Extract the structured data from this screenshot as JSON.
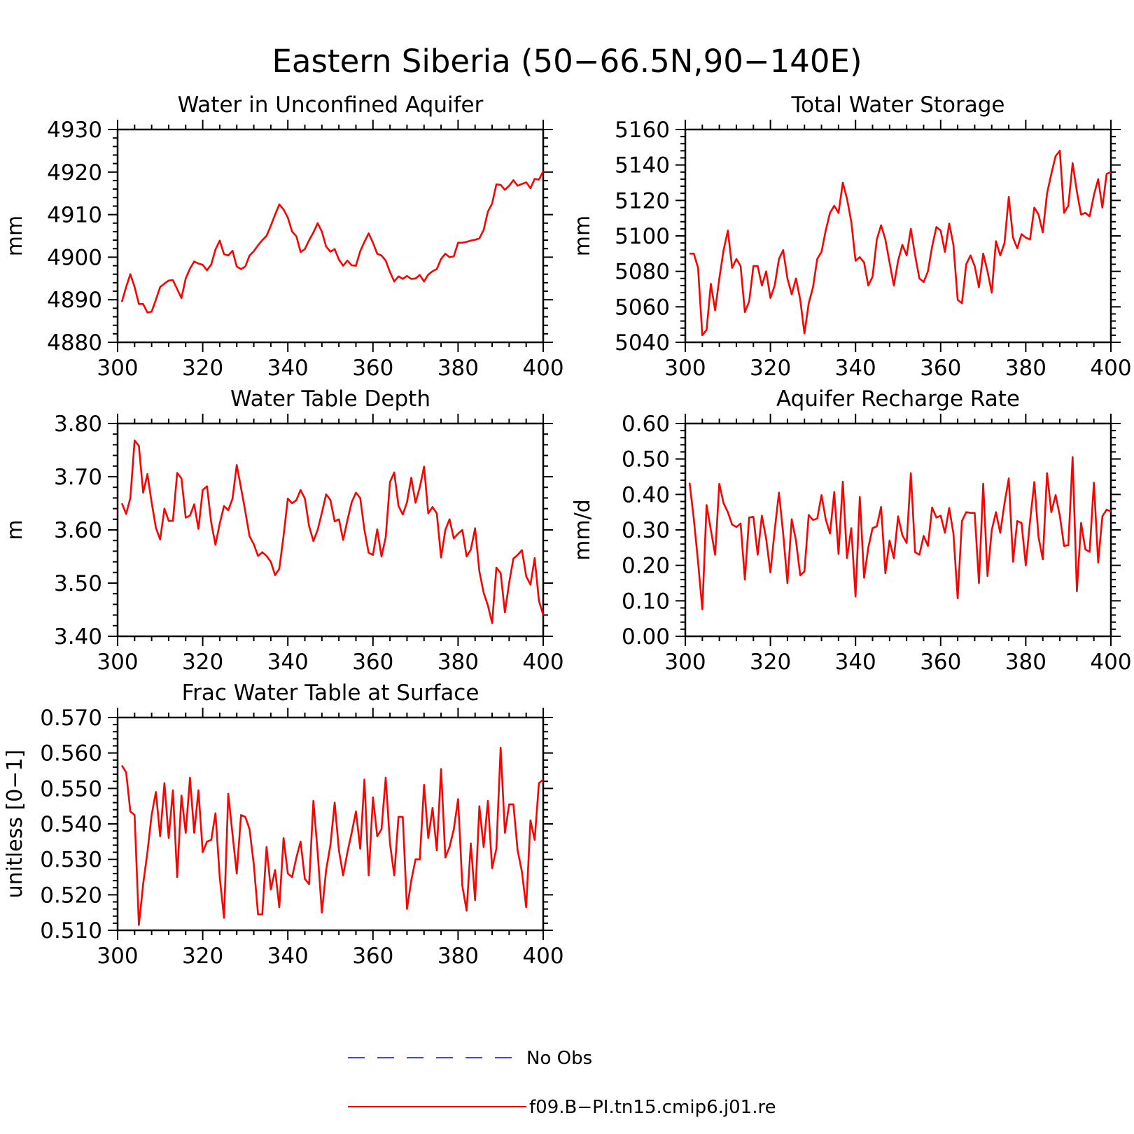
{
  "title": "Eastern Siberia (50−66.5N,90−140E)",
  "colors": {
    "model": "#ff0000",
    "obs": "#0000ff",
    "axes": "#000000"
  },
  "legend": {
    "obs_label": "No Obs",
    "model_label": "f09.B−PI.tn15.cmip6.j01.re"
  },
  "chart_data": [
    {
      "type": "line",
      "title": "Water in Unconfined Aquifer",
      "ylabel": "mm",
      "xlim": [
        300,
        400
      ],
      "ylim": [
        4880,
        4930
      ],
      "xticks": [
        "300",
        "320",
        "340",
        "360",
        "380",
        "400"
      ],
      "yticks": [
        "4880",
        "4890",
        "4900",
        "4910",
        "4920",
        "4930"
      ],
      "x": [
        301,
        302,
        303,
        304,
        305,
        306,
        307,
        308,
        309,
        310,
        311,
        312,
        313,
        314,
        315,
        316,
        317,
        318,
        319,
        320,
        321,
        322,
        323,
        324,
        325,
        326,
        327,
        328,
        329,
        330,
        331,
        332,
        333,
        334,
        335,
        336,
        337,
        338,
        339,
        340,
        341,
        342,
        343,
        344,
        345,
        346,
        347,
        348,
        349,
        350,
        351,
        352,
        353,
        354,
        355,
        356,
        357,
        358,
        359,
        360,
        361,
        362,
        363,
        364,
        365,
        366,
        367,
        368,
        369,
        370,
        371,
        372,
        373,
        374,
        375,
        376,
        377,
        378,
        379,
        380,
        381,
        382,
        383,
        384,
        385,
        386,
        387,
        388,
        389,
        390,
        391,
        392,
        393,
        394,
        395,
        396,
        397,
        398,
        399,
        400
      ],
      "series": [
        {
          "values": [
            4889.5,
            4893.0,
            4896.0,
            4893.0,
            4889.0,
            4889.0,
            4887.0,
            4887.2,
            4890.0,
            4893.0,
            4893.8,
            4894.5,
            4894.6,
            4892.5,
            4890.4,
            4895.0,
            4897.3,
            4899.0,
            4898.5,
            4898.2,
            4896.9,
            4898.3,
            4901.8,
            4903.9,
            4900.7,
            4900.4,
            4901.5,
            4897.8,
            4897.2,
            4897.8,
            4900.4,
            4901.4,
            4902.8,
            4904.0,
            4905.0,
            4907.4,
            4910.0,
            4912.4,
            4911.2,
            4909.3,
            4906.0,
            4904.9,
            4901.2,
            4901.9,
            4904.0,
            4905.8,
            4908.0,
            4906.0,
            4902.5,
            4901.3,
            4901.9,
            4899.4,
            4898.0,
            4899.2,
            4898.1,
            4898.0,
            4901.4,
            4903.6,
            4905.6,
            4903.4,
            4900.8,
            4900.4,
            4899.2,
            4896.5,
            4894.3,
            4895.5,
            4894.9,
            4895.6,
            4894.9,
            4895.0,
            4895.8,
            4894.3,
            4895.9,
            4896.7,
            4897.2,
            4899.6,
            4900.8,
            4900.0,
            4900.2,
            4903.4,
            4903.4,
            4903.6,
            4903.9,
            4904.1,
            4904.4,
            4906.4,
            4910.7,
            4912.6,
            4917.1,
            4917.0,
            4915.8,
            4916.8,
            4918.1,
            4916.8,
            4917.2,
            4917.6,
            4916.2,
            4918.4,
            4918.2,
            4920.2
          ]
        }
      ]
    },
    {
      "type": "line",
      "title": "Total Water Storage",
      "ylabel": "mm",
      "xlim": [
        300,
        400
      ],
      "ylim": [
        5040,
        5160
      ],
      "xticks": [
        "300",
        "320",
        "340",
        "360",
        "380",
        "400"
      ],
      "yticks": [
        "5040",
        "5060",
        "5080",
        "5100",
        "5120",
        "5140",
        "5160"
      ],
      "x": [
        301,
        302,
        303,
        304,
        305,
        306,
        307,
        308,
        309,
        310,
        311,
        312,
        313,
        314,
        315,
        316,
        317,
        318,
        319,
        320,
        321,
        322,
        323,
        324,
        325,
        326,
        327,
        328,
        329,
        330,
        331,
        332,
        333,
        334,
        335,
        336,
        337,
        338,
        339,
        340,
        341,
        342,
        343,
        344,
        345,
        346,
        347,
        348,
        349,
        350,
        351,
        352,
        353,
        354,
        355,
        356,
        357,
        358,
        359,
        360,
        361,
        362,
        363,
        364,
        365,
        366,
        367,
        368,
        369,
        370,
        371,
        372,
        373,
        374,
        375,
        376,
        377,
        378,
        379,
        380,
        381,
        382,
        383,
        384,
        385,
        386,
        387,
        388,
        389,
        390,
        391,
        392,
        393,
        394,
        395,
        396,
        397,
        398,
        399,
        400
      ],
      "series": [
        {
          "values": [
            5090,
            5090,
            5082,
            5044,
            5047,
            5073,
            5058,
            5076,
            5092,
            5103,
            5082,
            5087,
            5083,
            5057,
            5063,
            5083,
            5083,
            5072,
            5080,
            5065,
            5072,
            5087,
            5092,
            5076,
            5067,
            5076,
            5064,
            5045,
            5062,
            5071,
            5087,
            5091,
            5103,
            5113,
            5117,
            5113,
            5130,
            5121,
            5108,
            5086,
            5088,
            5085,
            5072,
            5077,
            5098,
            5106,
            5098,
            5085,
            5072,
            5086,
            5095,
            5089,
            5104,
            5089,
            5076,
            5074,
            5080,
            5094,
            5105,
            5103,
            5091,
            5107,
            5095,
            5064,
            5062,
            5084,
            5089,
            5083,
            5071,
            5090,
            5080,
            5068,
            5097,
            5089,
            5096,
            5122,
            5099,
            5093,
            5101,
            5099,
            5098,
            5116,
            5112,
            5102,
            5124,
            5135,
            5145,
            5148,
            5113,
            5117,
            5141,
            5125,
            5112,
            5113,
            5111,
            5123,
            5132,
            5116,
            5135,
            5136
          ]
        }
      ]
    },
    {
      "type": "line",
      "title": "Water Table Depth",
      "ylabel": "m",
      "xlim": [
        300,
        400
      ],
      "ylim": [
        3.4,
        3.8
      ],
      "xticks": [
        "300",
        "320",
        "340",
        "360",
        "380",
        "400"
      ],
      "yticks": [
        "3.40",
        "3.50",
        "3.60",
        "3.70",
        "3.80"
      ],
      "x": [
        301,
        302,
        303,
        304,
        305,
        306,
        307,
        308,
        309,
        310,
        311,
        312,
        313,
        314,
        315,
        316,
        317,
        318,
        319,
        320,
        321,
        322,
        323,
        324,
        325,
        326,
        327,
        328,
        329,
        330,
        331,
        332,
        333,
        334,
        335,
        336,
        337,
        338,
        339,
        340,
        341,
        342,
        343,
        344,
        345,
        346,
        347,
        348,
        349,
        350,
        351,
        352,
        353,
        354,
        355,
        356,
        357,
        358,
        359,
        360,
        361,
        362,
        363,
        364,
        365,
        366,
        367,
        368,
        369,
        370,
        371,
        372,
        373,
        374,
        375,
        376,
        377,
        378,
        379,
        380,
        381,
        382,
        383,
        384,
        385,
        386,
        387,
        388,
        389,
        390,
        391,
        392,
        393,
        394,
        395,
        396,
        397,
        398,
        399,
        400
      ],
      "series": [
        {
          "values": [
            3.65,
            3.63,
            3.66,
            3.768,
            3.758,
            3.67,
            3.705,
            3.652,
            3.604,
            3.582,
            3.64,
            3.617,
            3.617,
            3.707,
            3.697,
            3.623,
            3.627,
            3.648,
            3.602,
            3.675,
            3.682,
            3.613,
            3.572,
            3.612,
            3.645,
            3.637,
            3.659,
            3.722,
            3.679,
            3.635,
            3.588,
            3.573,
            3.551,
            3.558,
            3.551,
            3.54,
            3.515,
            3.527,
            3.589,
            3.659,
            3.65,
            3.656,
            3.675,
            3.659,
            3.607,
            3.579,
            3.6,
            3.632,
            3.667,
            3.656,
            3.616,
            3.62,
            3.581,
            3.618,
            3.652,
            3.67,
            3.66,
            3.6,
            3.557,
            3.553,
            3.601,
            3.55,
            3.586,
            3.69,
            3.708,
            3.645,
            3.629,
            3.652,
            3.698,
            3.651,
            3.68,
            3.719,
            3.631,
            3.643,
            3.631,
            3.548,
            3.6,
            3.62,
            3.584,
            3.593,
            3.6,
            3.55,
            3.563,
            3.603,
            3.522,
            3.482,
            3.458,
            3.425,
            3.529,
            3.519,
            3.445,
            3.501,
            3.546,
            3.553,
            3.562,
            3.513,
            3.497,
            3.547,
            3.467,
            3.44
          ]
        }
      ]
    },
    {
      "type": "line",
      "title": "Aquifer Recharge Rate",
      "ylabel": "mm/d",
      "xlim": [
        300,
        400
      ],
      "ylim": [
        0.0,
        0.6
      ],
      "xticks": [
        "300",
        "320",
        "340",
        "360",
        "380",
        "400"
      ],
      "yticks": [
        "0.00",
        "0.10",
        "0.20",
        "0.30",
        "0.40",
        "0.50",
        "0.60"
      ],
      "x": [
        301,
        302,
        303,
        304,
        305,
        306,
        307,
        308,
        309,
        310,
        311,
        312,
        313,
        314,
        315,
        316,
        317,
        318,
        319,
        320,
        321,
        322,
        323,
        324,
        325,
        326,
        327,
        328,
        329,
        330,
        331,
        332,
        333,
        334,
        335,
        336,
        337,
        338,
        339,
        340,
        341,
        342,
        343,
        344,
        345,
        346,
        347,
        348,
        349,
        350,
        351,
        352,
        353,
        354,
        355,
        356,
        357,
        358,
        359,
        360,
        361,
        362,
        363,
        364,
        365,
        366,
        367,
        368,
        369,
        370,
        371,
        372,
        373,
        374,
        375,
        376,
        377,
        378,
        379,
        380,
        381,
        382,
        383,
        384,
        385,
        386,
        387,
        388,
        389,
        390,
        391,
        392,
        393,
        394,
        395,
        396,
        397,
        398,
        399,
        400
      ],
      "series": [
        {
          "values": [
            0.433,
            0.33,
            0.21,
            0.076,
            0.37,
            0.3,
            0.23,
            0.43,
            0.375,
            0.35,
            0.315,
            0.308,
            0.318,
            0.16,
            0.335,
            0.337,
            0.23,
            0.34,
            0.275,
            0.18,
            0.3,
            0.405,
            0.29,
            0.15,
            0.33,
            0.27,
            0.172,
            0.183,
            0.342,
            0.328,
            0.332,
            0.398,
            0.33,
            0.29,
            0.407,
            0.232,
            0.436,
            0.22,
            0.305,
            0.112,
            0.393,
            0.165,
            0.25,
            0.305,
            0.31,
            0.365,
            0.178,
            0.27,
            0.22,
            0.338,
            0.285,
            0.263,
            0.46,
            0.237,
            0.23,
            0.283,
            0.255,
            0.363,
            0.335,
            0.34,
            0.292,
            0.362,
            0.29,
            0.107,
            0.325,
            0.35,
            0.348,
            0.348,
            0.15,
            0.43,
            0.17,
            0.3,
            0.35,
            0.292,
            0.375,
            0.445,
            0.21,
            0.325,
            0.32,
            0.2,
            0.325,
            0.435,
            0.28,
            0.217,
            0.46,
            0.35,
            0.398,
            0.34,
            0.255,
            0.257,
            0.505,
            0.127,
            0.32,
            0.245,
            0.238,
            0.433,
            0.208,
            0.338,
            0.357,
            0.352
          ]
        }
      ]
    },
    {
      "type": "line",
      "title": "Frac Water Table at Surface",
      "ylabel": "unitless [0−1]",
      "xlim": [
        300,
        400
      ],
      "ylim": [
        0.51,
        0.57
      ],
      "xticks": [
        "300",
        "320",
        "340",
        "360",
        "380",
        "400"
      ],
      "yticks": [
        "0.510",
        "0.520",
        "0.530",
        "0.540",
        "0.550",
        "0.560",
        "0.570"
      ],
      "x": [
        301,
        302,
        303,
        304,
        305,
        306,
        307,
        308,
        309,
        310,
        311,
        312,
        313,
        314,
        315,
        316,
        317,
        318,
        319,
        320,
        321,
        322,
        323,
        324,
        325,
        326,
        327,
        328,
        329,
        330,
        331,
        332,
        333,
        334,
        335,
        336,
        337,
        338,
        339,
        340,
        341,
        342,
        343,
        344,
        345,
        346,
        347,
        348,
        349,
        350,
        351,
        352,
        353,
        354,
        355,
        356,
        357,
        358,
        359,
        360,
        361,
        362,
        363,
        364,
        365,
        366,
        367,
        368,
        369,
        370,
        371,
        372,
        373,
        374,
        375,
        376,
        377,
        378,
        379,
        380,
        381,
        382,
        383,
        384,
        385,
        386,
        387,
        388,
        389,
        390,
        391,
        392,
        393,
        394,
        395,
        396,
        397,
        398,
        399,
        400
      ],
      "series": [
        {
          "values": [
            0.5565,
            0.5545,
            0.5435,
            0.5425,
            0.5115,
            0.523,
            0.532,
            0.5425,
            0.549,
            0.5365,
            0.5515,
            0.536,
            0.5495,
            0.525,
            0.548,
            0.5375,
            0.553,
            0.5375,
            0.5495,
            0.532,
            0.535,
            0.5355,
            0.543,
            0.525,
            0.5135,
            0.5485,
            0.537,
            0.526,
            0.5425,
            0.542,
            0.5385,
            0.5285,
            0.5145,
            0.5145,
            0.5335,
            0.5215,
            0.527,
            0.5165,
            0.536,
            0.526,
            0.525,
            0.5305,
            0.535,
            0.5245,
            0.523,
            0.5465,
            0.532,
            0.515,
            0.527,
            0.534,
            0.546,
            0.5325,
            0.5255,
            0.532,
            0.5375,
            0.5435,
            0.533,
            0.5525,
            0.5255,
            0.5475,
            0.5365,
            0.5385,
            0.553,
            0.5345,
            0.5255,
            0.542,
            0.542,
            0.516,
            0.524,
            0.53,
            0.53,
            0.551,
            0.536,
            0.5445,
            0.5325,
            0.5555,
            0.5305,
            0.5335,
            0.5385,
            0.547,
            0.5225,
            0.5155,
            0.5345,
            0.5185,
            0.545,
            0.5335,
            0.5465,
            0.5275,
            0.533,
            0.5615,
            0.5375,
            0.5455,
            0.5455,
            0.5325,
            0.5265,
            0.5165,
            0.541,
            0.5355,
            0.5515,
            0.5525
          ]
        }
      ]
    }
  ]
}
